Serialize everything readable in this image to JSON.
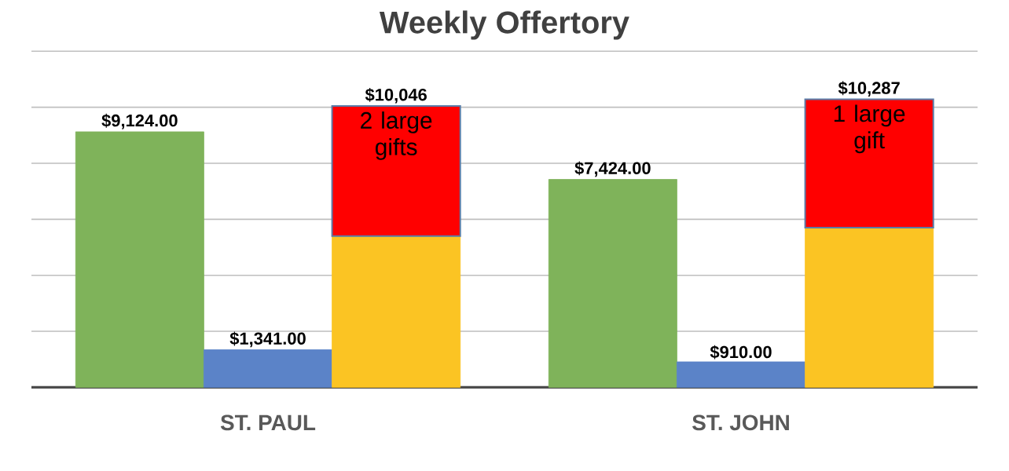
{
  "chart_data": {
    "type": "bar",
    "title": "Weekly Offertory",
    "stacked": true,
    "categories": [
      null,
      "ST. PAUL",
      null,
      null,
      "ST. JOHN",
      null
    ],
    "series": [
      {
        "colors": [
          "#7fb35a",
          "#5b83c8",
          "#fbc423",
          "#7fb35a",
          "#5b83c8",
          "#fbc423"
        ],
        "values": [
          9124,
          1341,
          5400,
          7424,
          910,
          5700
        ],
        "value_labels": [
          "$9,124.00",
          "$1,341.00",
          null,
          "$7,424.00",
          "$910.00",
          null
        ]
      },
      {
        "color": "#ff0000",
        "values": [
          null,
          null,
          4646,
          null,
          null,
          4587
        ]
      }
    ],
    "totals": [
      null,
      null,
      "$10,046",
      null,
      null,
      "$10,287"
    ],
    "annotations": [
      "2 large gifts",
      "1 large gift"
    ],
    "grid": "y",
    "tick_labels": "x"
  }
}
